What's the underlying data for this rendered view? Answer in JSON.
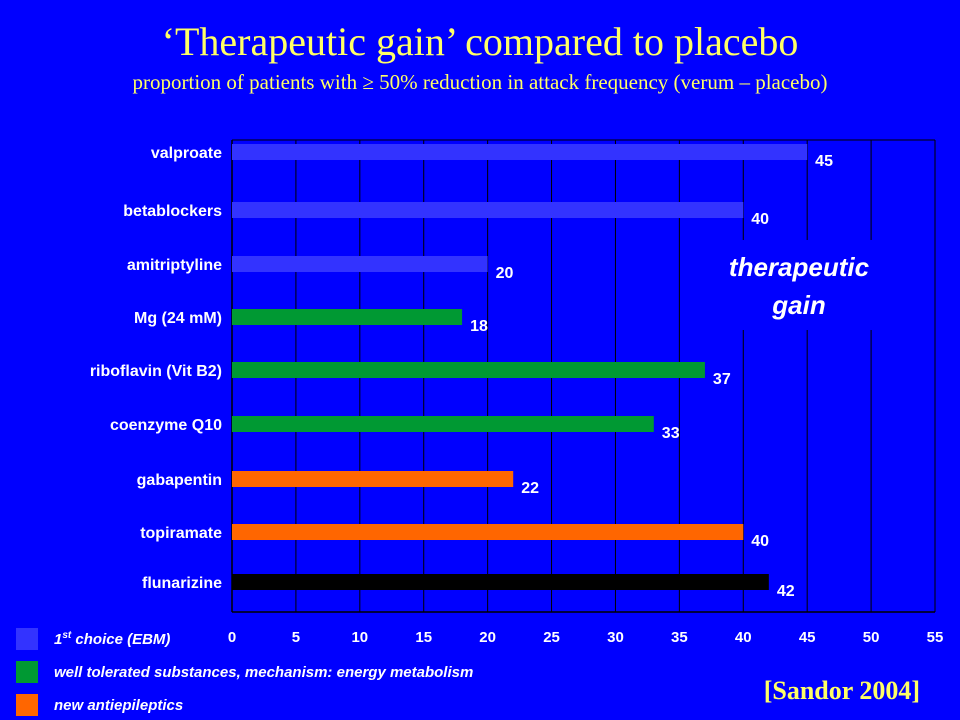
{
  "title": "‘Therapeutic gain’ compared to placebo",
  "subtitle": "proportion of patients with ≥ 50% reduction in attack frequency (verum – placebo)",
  "citation": "[Sandor 2004]",
  "legend": [
    {
      "prefix": "1",
      "sup": "st",
      "suffix": " choice (EBM)",
      "color": "#3333ff"
    },
    {
      "prefix": "well tolerated substances, mechanism: energy metabolism",
      "sup": "",
      "suffix": "",
      "color": "#009933"
    },
    {
      "prefix": "new antiepileptics",
      "sup": "",
      "suffix": "",
      "color": "#ff6600"
    }
  ],
  "colors": {
    "background": "#0000ff",
    "text": "#ffffff",
    "title": "#ffff66",
    "grid": "#000000"
  },
  "chart_data": {
    "type": "bar",
    "orientation": "horizontal",
    "categories": [
      "valproate",
      "betablockers",
      "amitriptyline",
      "Mg (24 mM)",
      "riboflavin (Vit B2)",
      "coenzyme Q10",
      "gabapentin",
      "topiramate",
      "flunarizine"
    ],
    "values": [
      45,
      40,
      20,
      18,
      37,
      33,
      22,
      40,
      42
    ],
    "bar_colors": [
      "#3333ff",
      "#3333ff",
      "#3333ff",
      "#009933",
      "#009933",
      "#009933",
      "#ff6600",
      "#ff6600",
      "#000000"
    ],
    "data_labels": [
      "45",
      "40",
      "20",
      "18",
      "37",
      "33",
      "22",
      "40",
      "42"
    ],
    "xlim": [
      0,
      55
    ],
    "xticks": [
      "0",
      "5",
      "10",
      "15",
      "20",
      "25",
      "30",
      "35",
      "40",
      "45",
      "50",
      "55"
    ],
    "grid": "vertical",
    "annotation": [
      "therapeutic",
      "gain"
    ]
  }
}
